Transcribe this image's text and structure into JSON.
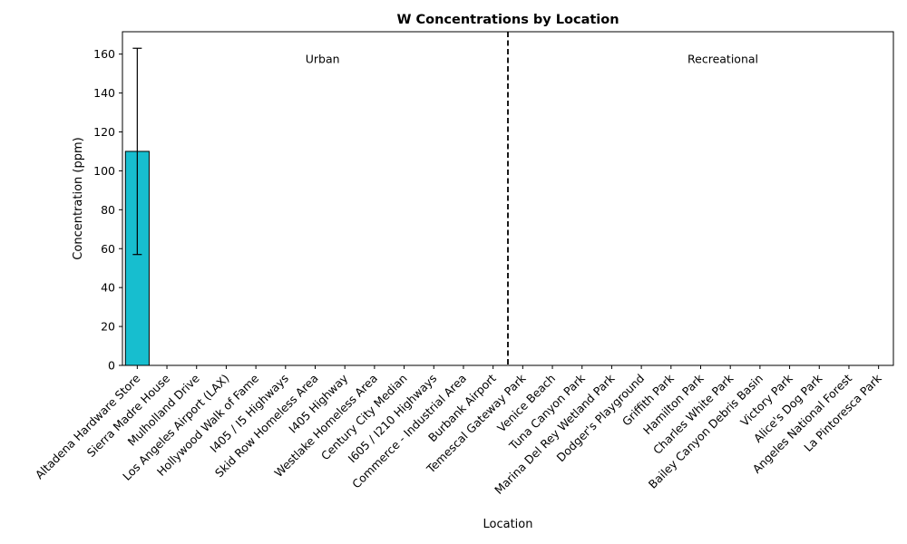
{
  "chart_data": {
    "type": "bar",
    "title": "W Concentrations by Location",
    "xlabel": "Location",
    "ylabel": "Concentration (ppm)",
    "ylim": [
      0,
      171.5
    ],
    "yticks": [
      0,
      20,
      40,
      60,
      80,
      100,
      120,
      140,
      160
    ],
    "grid": false,
    "categories": [
      "Altadena Hardware Store",
      "Sierra Madre House",
      "Mulholland Drive",
      "Los Angeles Airport (LAX)",
      "Hollywood Walk of Fame",
      "I405 / I5 Highways",
      "Skid Row Homeless Area",
      "I405 Highway",
      "Westlake Homeless Area",
      "Century City Median",
      "I605 / I210 Highways",
      "Commerce - Industrial Area",
      "Burbank Airport",
      "Temescal Gateway Park",
      "Venice Beach",
      "Tuna Canyon Park",
      "Marina Del Rey Wetland Park",
      "Dodger's Playground",
      "Griffith Park",
      "Hamilton Park",
      "Charles White Park",
      "Bailey Canyon Debris Basin",
      "Victory Park",
      "Alice's Dog Park",
      "Angeles National Forest",
      "La Pintoresca Park"
    ],
    "values": [
      110,
      null,
      null,
      null,
      null,
      null,
      null,
      null,
      null,
      null,
      null,
      null,
      null,
      null,
      null,
      null,
      null,
      null,
      null,
      null,
      null,
      null,
      null,
      null,
      null,
      null
    ],
    "errors": [
      53,
      null,
      null,
      null,
      null,
      null,
      null,
      null,
      null,
      null,
      null,
      null,
      null,
      null,
      null,
      null,
      null,
      null,
      null,
      null,
      null,
      null,
      null,
      null,
      null,
      null
    ],
    "bar_color": "#17becf",
    "divider_after_index": 12.5,
    "regions": [
      {
        "label": "Urban",
        "center_index": 6.25
      },
      {
        "label": "Recreational",
        "center_index": 19.75
      }
    ]
  }
}
